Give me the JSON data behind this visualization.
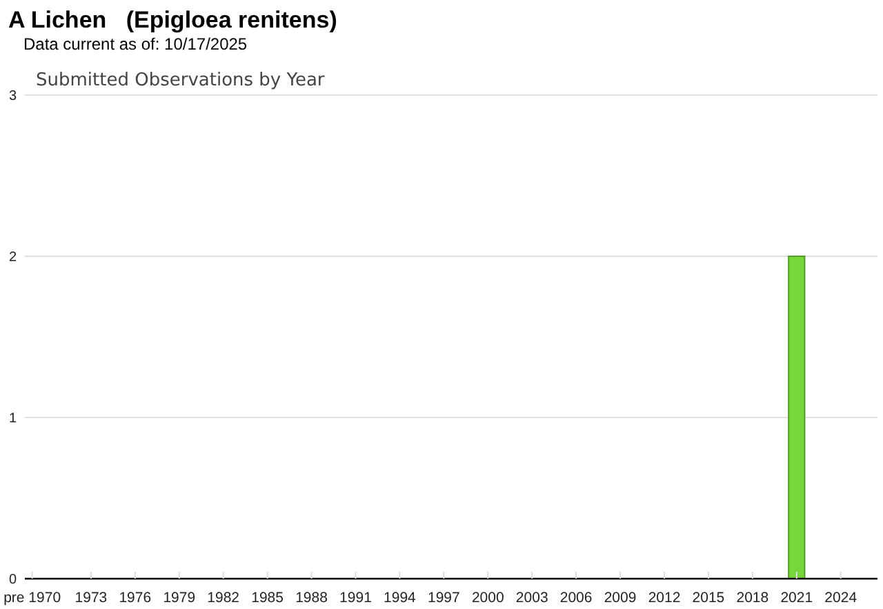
{
  "chart_data": {
    "type": "bar",
    "title": "A Lichen   (Epigloea renitens)",
    "subtitle": "Data current as of: 10/17/2025",
    "annotations": [
      "Submitted Observations by Year"
    ],
    "categories": [
      "pre 1970",
      null,
      null,
      null,
      "1973",
      null,
      null,
      "1976",
      null,
      null,
      "1979",
      null,
      null,
      "1982",
      null,
      null,
      "1985",
      null,
      null,
      "1988",
      null,
      null,
      "1991",
      null,
      null,
      "1994",
      null,
      null,
      "1997",
      null,
      null,
      "2000",
      null,
      null,
      "2003",
      null,
      null,
      "2006",
      null,
      null,
      "2009",
      null,
      null,
      "2012",
      null,
      null,
      "2015",
      null,
      null,
      "2018",
      null,
      null,
      "2021",
      null,
      null,
      "2024",
      null,
      null
    ],
    "values": [
      0,
      0,
      0,
      0,
      0,
      0,
      0,
      0,
      0,
      0,
      0,
      0,
      0,
      0,
      0,
      0,
      0,
      0,
      0,
      0,
      0,
      0,
      0,
      0,
      0,
      0,
      0,
      0,
      0,
      0,
      0,
      0,
      0,
      0,
      0,
      0,
      0,
      0,
      0,
      0,
      0,
      0,
      0,
      0,
      0,
      0,
      0,
      0,
      0,
      0,
      0,
      0,
      2,
      0,
      0,
      0,
      0,
      0
    ],
    "color": "#77d63a",
    "ylim": [
      0,
      3
    ],
    "yticks": [
      0,
      1,
      2,
      3
    ],
    "grid": "y"
  }
}
